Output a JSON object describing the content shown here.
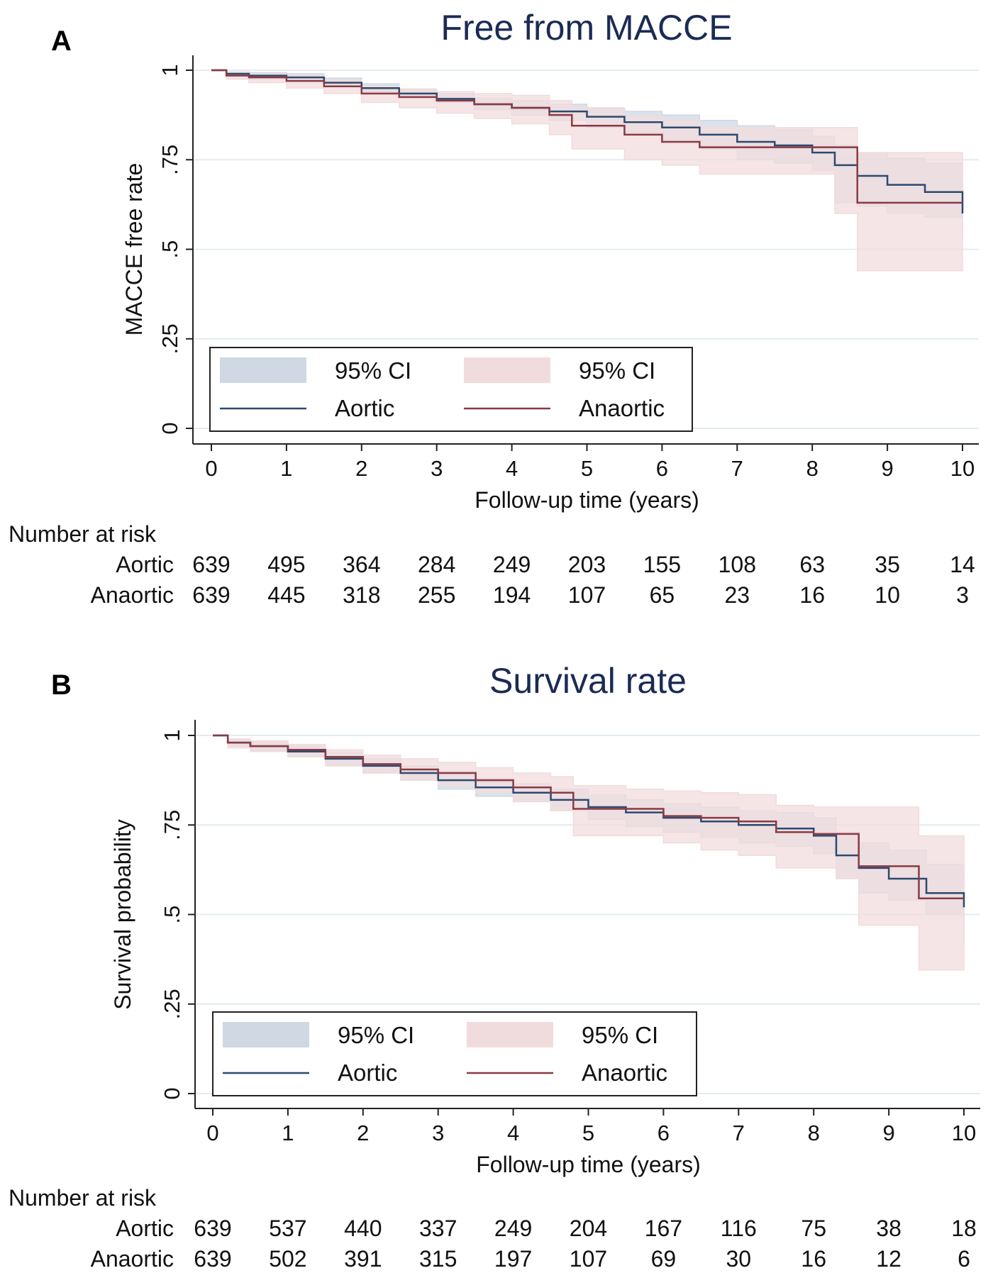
{
  "chart_data": [
    {
      "type": "line",
      "panel_label": "A",
      "title": "Free from MACCE",
      "xlabel": "Follow-up time (years)",
      "ylabel": "MACCE free rate",
      "xlim": [
        0,
        10
      ],
      "ylim": [
        0,
        1
      ],
      "x_ticks": [
        0,
        1,
        2,
        3,
        4,
        5,
        6,
        7,
        8,
        9,
        10
      ],
      "y_ticks": [
        0,
        0.25,
        0.5,
        0.75,
        1
      ],
      "y_tick_labels": [
        "0",
        ".25",
        ".5",
        ".75",
        "1"
      ],
      "grid": true,
      "legend": {
        "position": "bottom-left",
        "entries": [
          "95% CI",
          "95% CI",
          "Aortic",
          "Anaortic"
        ]
      },
      "series": [
        {
          "name": "Aortic",
          "color": "#2c4a6e",
          "ci_color": "#cfd8e3",
          "x": [
            0,
            0.2,
            0.5,
            1,
            1.5,
            2,
            2.5,
            3,
            3.5,
            4,
            4.5,
            5,
            5.5,
            6,
            6.5,
            7,
            7.5,
            8,
            8.3,
            8.6,
            9,
            9.5,
            10
          ],
          "y": [
            1,
            0.99,
            0.985,
            0.98,
            0.965,
            0.95,
            0.935,
            0.92,
            0.905,
            0.895,
            0.885,
            0.87,
            0.855,
            0.84,
            0.82,
            0.8,
            0.79,
            0.77,
            0.735,
            0.705,
            0.68,
            0.66,
            0.6
          ],
          "ci_lower": [
            1,
            0.985,
            0.975,
            0.97,
            0.955,
            0.94,
            0.925,
            0.91,
            0.89,
            0.875,
            0.86,
            0.84,
            0.82,
            0.8,
            0.78,
            0.75,
            0.74,
            0.72,
            0.63,
            0.62,
            0.6,
            0.59,
            0.53
          ],
          "ci_upper": [
            1,
            0.995,
            0.993,
            0.99,
            0.978,
            0.962,
            0.948,
            0.935,
            0.922,
            0.915,
            0.905,
            0.895,
            0.885,
            0.875,
            0.86,
            0.845,
            0.835,
            0.815,
            0.79,
            0.77,
            0.755,
            0.74,
            0.68
          ]
        },
        {
          "name": "Anaortic",
          "color": "#8a3a44",
          "ci_color": "#f1dcdd",
          "x": [
            0,
            0.2,
            0.5,
            1,
            1.5,
            2,
            2.5,
            3,
            3.5,
            4,
            4.5,
            4.8,
            5.5,
            6,
            6.5,
            7,
            7.5,
            8,
            8.3,
            8.6,
            9,
            10
          ],
          "y": [
            1,
            0.985,
            0.98,
            0.97,
            0.955,
            0.935,
            0.925,
            0.915,
            0.905,
            0.895,
            0.875,
            0.845,
            0.82,
            0.8,
            0.785,
            0.785,
            0.785,
            0.785,
            0.785,
            0.63,
            0.63,
            0.63
          ],
          "ci_lower": [
            1,
            0.975,
            0.965,
            0.95,
            0.935,
            0.91,
            0.895,
            0.88,
            0.865,
            0.85,
            0.82,
            0.78,
            0.75,
            0.735,
            0.71,
            0.71,
            0.71,
            0.71,
            0.6,
            0.44,
            0.44,
            0.44
          ],
          "ci_upper": [
            1,
            0.995,
            0.99,
            0.985,
            0.972,
            0.955,
            0.948,
            0.94,
            0.935,
            0.93,
            0.915,
            0.895,
            0.87,
            0.86,
            0.84,
            0.84,
            0.84,
            0.84,
            0.84,
            0.77,
            0.77,
            0.77
          ]
        }
      ],
      "risk_table": {
        "header": "Number at risk",
        "rows": [
          {
            "label": "Aortic",
            "values": [
              "639",
              "495",
              "364",
              "284",
              "249",
              "203",
              "155",
              "108",
              "63",
              "35",
              "14"
            ]
          },
          {
            "label": "Anaortic",
            "values": [
              "639",
              "445",
              "318",
              "255",
              "194",
              "107",
              "65",
              "23",
              "16",
              "10",
              "3"
            ]
          }
        ]
      }
    },
    {
      "type": "line",
      "panel_label": "B",
      "title": "Survival rate",
      "xlabel": "Follow-up time (years)",
      "ylabel": "Survival probability",
      "xlim": [
        0,
        10
      ],
      "ylim": [
        0,
        1
      ],
      "x_ticks": [
        0,
        1,
        2,
        3,
        4,
        5,
        6,
        7,
        8,
        9,
        10
      ],
      "y_ticks": [
        0,
        0.25,
        0.5,
        0.75,
        1
      ],
      "y_tick_labels": [
        "0",
        ".25",
        ".5",
        ".75",
        "1"
      ],
      "grid": true,
      "legend": {
        "position": "bottom-left",
        "entries": [
          "95% CI",
          "95% CI",
          "Aortic",
          "Anaortic"
        ]
      },
      "series": [
        {
          "name": "Aortic",
          "color": "#2c4a6e",
          "ci_color": "#cfd8e3",
          "x": [
            0,
            0.2,
            0.5,
            1,
            1.5,
            2,
            2.5,
            3,
            3.5,
            4,
            4.5,
            5,
            5.5,
            6,
            6.5,
            7,
            7.5,
            8,
            8.3,
            8.6,
            9,
            9.5,
            10
          ],
          "y": [
            1,
            0.98,
            0.97,
            0.955,
            0.935,
            0.915,
            0.895,
            0.875,
            0.855,
            0.84,
            0.82,
            0.8,
            0.785,
            0.77,
            0.76,
            0.75,
            0.74,
            0.72,
            0.665,
            0.63,
            0.6,
            0.56,
            0.52
          ],
          "ci_lower": [
            1,
            0.97,
            0.958,
            0.94,
            0.918,
            0.895,
            0.875,
            0.85,
            0.83,
            0.815,
            0.79,
            0.765,
            0.745,
            0.73,
            0.715,
            0.7,
            0.69,
            0.67,
            0.6,
            0.56,
            0.54,
            0.5,
            0.42
          ],
          "ci_upper": [
            1,
            0.99,
            0.982,
            0.97,
            0.953,
            0.935,
            0.915,
            0.9,
            0.88,
            0.865,
            0.85,
            0.835,
            0.82,
            0.81,
            0.8,
            0.79,
            0.785,
            0.77,
            0.73,
            0.7,
            0.68,
            0.64,
            0.6
          ]
        },
        {
          "name": "Anaortic",
          "color": "#8a3a44",
          "ci_color": "#f1dcdd",
          "x": [
            0,
            0.2,
            0.5,
            1,
            1.5,
            2,
            2.5,
            3,
            3.5,
            4,
            4.5,
            4.8,
            5.5,
            6,
            6.5,
            7,
            7.5,
            8,
            8.3,
            8.6,
            9,
            9.4,
            10
          ],
          "y": [
            1,
            0.98,
            0.97,
            0.96,
            0.94,
            0.92,
            0.905,
            0.895,
            0.875,
            0.855,
            0.84,
            0.795,
            0.795,
            0.775,
            0.77,
            0.76,
            0.73,
            0.725,
            0.725,
            0.635,
            0.635,
            0.545,
            0.545
          ],
          "ci_lower": [
            1,
            0.965,
            0.955,
            0.94,
            0.915,
            0.895,
            0.875,
            0.86,
            0.84,
            0.815,
            0.79,
            0.72,
            0.72,
            0.7,
            0.68,
            0.665,
            0.63,
            0.63,
            0.6,
            0.47,
            0.47,
            0.345,
            0.345
          ],
          "ci_upper": [
            1,
            0.99,
            0.985,
            0.975,
            0.96,
            0.945,
            0.935,
            0.925,
            0.91,
            0.895,
            0.885,
            0.86,
            0.85,
            0.845,
            0.84,
            0.835,
            0.805,
            0.8,
            0.8,
            0.8,
            0.8,
            0.72,
            0.72
          ]
        }
      ],
      "risk_table": {
        "header": "Number at risk",
        "rows": [
          {
            "label": "Aortic",
            "values": [
              "639",
              "537",
              "440",
              "337",
              "249",
              "204",
              "167",
              "116",
              "75",
              "38",
              "18"
            ]
          },
          {
            "label": "Anaortic",
            "values": [
              "639",
              "502",
              "391",
              "315",
              "197",
              "107",
              "69",
              "30",
              "16",
              "12",
              "6"
            ]
          }
        ]
      }
    }
  ]
}
